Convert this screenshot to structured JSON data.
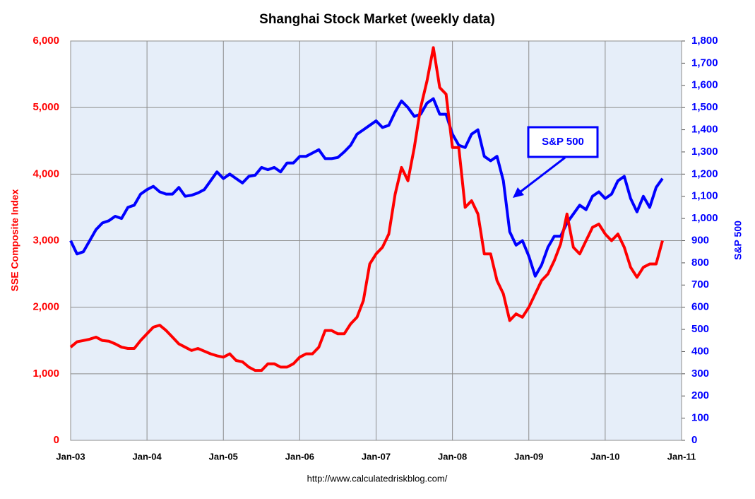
{
  "chart_data": {
    "type": "line",
    "title": "Shanghai Stock Market (weekly data)",
    "ylabel": "SSE Composite Index",
    "y2label": "S&P 500",
    "annotation": "S&P 500",
    "source": "http://www.calculatedriskblog.com/",
    "x": [
      "2003-01",
      "2003-02",
      "2003-03",
      "2003-04",
      "2003-05",
      "2003-06",
      "2003-07",
      "2003-08",
      "2003-09",
      "2003-10",
      "2003-11",
      "2003-12",
      "2004-01",
      "2004-02",
      "2004-03",
      "2004-04",
      "2004-05",
      "2004-06",
      "2004-07",
      "2004-08",
      "2004-09",
      "2004-10",
      "2004-11",
      "2004-12",
      "2005-01",
      "2005-02",
      "2005-03",
      "2005-04",
      "2005-05",
      "2005-06",
      "2005-07",
      "2005-08",
      "2005-09",
      "2005-10",
      "2005-11",
      "2005-12",
      "2006-01",
      "2006-02",
      "2006-03",
      "2006-04",
      "2006-05",
      "2006-06",
      "2006-07",
      "2006-08",
      "2006-09",
      "2006-10",
      "2006-11",
      "2006-12",
      "2007-01",
      "2007-02",
      "2007-03",
      "2007-04",
      "2007-05",
      "2007-06",
      "2007-07",
      "2007-08",
      "2007-09",
      "2007-10",
      "2007-11",
      "2007-12",
      "2008-01",
      "2008-02",
      "2008-03",
      "2008-04",
      "2008-05",
      "2008-06",
      "2008-07",
      "2008-08",
      "2008-09",
      "2008-10",
      "2008-11",
      "2008-12",
      "2009-01",
      "2009-02",
      "2009-03",
      "2009-04",
      "2009-05",
      "2009-06",
      "2009-07",
      "2009-08",
      "2009-09",
      "2009-10",
      "2009-11",
      "2009-12",
      "2010-01",
      "2010-02",
      "2010-03",
      "2010-04",
      "2010-05",
      "2010-06",
      "2010-07",
      "2010-08",
      "2010-09",
      "2010-10"
    ],
    "series": [
      {
        "name": "SSE Composite Index",
        "color": "#ff0000",
        "axis": "y",
        "values": [
          1400,
          1480,
          1500,
          1520,
          1550,
          1500,
          1490,
          1450,
          1400,
          1380,
          1380,
          1500,
          1600,
          1700,
          1730,
          1650,
          1550,
          1450,
          1400,
          1350,
          1380,
          1340,
          1300,
          1270,
          1250,
          1300,
          1200,
          1180,
          1100,
          1050,
          1050,
          1150,
          1150,
          1100,
          1100,
          1150,
          1250,
          1300,
          1300,
          1400,
          1650,
          1650,
          1600,
          1600,
          1750,
          1850,
          2100,
          2650,
          2800,
          2900,
          3100,
          3700,
          4100,
          3900,
          4400,
          5000,
          5400,
          5900,
          5300,
          5200,
          4400,
          4400,
          3500,
          3600,
          3400,
          2800,
          2800,
          2400,
          2200,
          1800,
          1900,
          1850,
          2000,
          2200,
          2400,
          2500,
          2700,
          2950,
          3400,
          2900,
          2800,
          3000,
          3200,
          3250,
          3100,
          3000,
          3100,
          2900,
          2600,
          2450,
          2600,
          2650,
          2650,
          3000
        ]
      },
      {
        "name": "S&P 500",
        "color": "#0000ff",
        "axis": "y2",
        "values": [
          900,
          840,
          850,
          900,
          950,
          980,
          990,
          1010,
          1000,
          1050,
          1060,
          1110,
          1130,
          1145,
          1120,
          1110,
          1110,
          1140,
          1100,
          1105,
          1115,
          1130,
          1170,
          1210,
          1180,
          1200,
          1180,
          1160,
          1190,
          1195,
          1230,
          1220,
          1230,
          1210,
          1250,
          1250,
          1280,
          1280,
          1295,
          1310,
          1270,
          1270,
          1275,
          1300,
          1330,
          1380,
          1400,
          1420,
          1440,
          1410,
          1420,
          1480,
          1530,
          1500,
          1460,
          1470,
          1520,
          1540,
          1470,
          1470,
          1380,
          1330,
          1320,
          1380,
          1400,
          1280,
          1260,
          1280,
          1170,
          940,
          880,
          900,
          830,
          740,
          790,
          870,
          920,
          920,
          980,
          1020,
          1060,
          1040,
          1100,
          1120,
          1090,
          1110,
          1170,
          1190,
          1090,
          1030,
          1100,
          1050,
          1140,
          1180
        ]
      }
    ],
    "xlim": [
      "2003-01",
      "2011-01"
    ],
    "xticks": [
      {
        "value": "2003-01",
        "label": "Jan-03"
      },
      {
        "value": "2004-01",
        "label": "Jan-04"
      },
      {
        "value": "2005-01",
        "label": "Jan-05"
      },
      {
        "value": "2006-01",
        "label": "Jan-06"
      },
      {
        "value": "2007-01",
        "label": "Jan-07"
      },
      {
        "value": "2008-01",
        "label": "Jan-08"
      },
      {
        "value": "2009-01",
        "label": "Jan-09"
      },
      {
        "value": "2010-01",
        "label": "Jan-10"
      },
      {
        "value": "2011-01",
        "label": "Jan-11"
      }
    ],
    "ylim": [
      0,
      6000
    ],
    "yticks": [
      0,
      {
        "value": 1000,
        "label": "1,000"
      },
      {
        "value": 2000,
        "label": "2,000"
      },
      {
        "value": 3000,
        "label": "3,000"
      },
      {
        "value": 4000,
        "label": "4,000"
      },
      {
        "value": 5000,
        "label": "5,000"
      },
      {
        "value": 6000,
        "label": "6,000"
      }
    ],
    "y2lim": [
      0,
      1800
    ],
    "y2ticks": [
      0,
      100,
      200,
      300,
      400,
      500,
      600,
      700,
      800,
      900,
      {
        "value": 1000,
        "label": "1,000"
      },
      {
        "value": 1100,
        "label": "1,100"
      },
      {
        "value": 1200,
        "label": "1,200"
      },
      {
        "value": 1300,
        "label": "1,300"
      },
      {
        "value": 1400,
        "label": "1,400"
      },
      {
        "value": 1500,
        "label": "1,500"
      },
      {
        "value": 1600,
        "label": "1,600"
      },
      {
        "value": 1700,
        "label": "1,700"
      },
      {
        "value": 1800,
        "label": "1,800"
      }
    ],
    "grid": true
  }
}
